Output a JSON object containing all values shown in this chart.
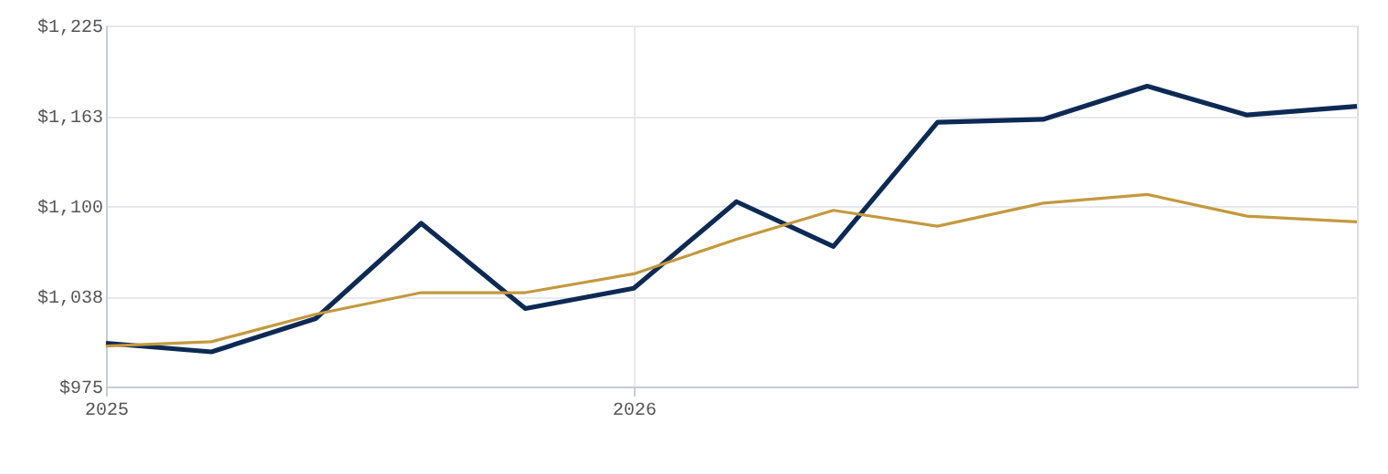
{
  "chart_data": {
    "type": "line",
    "x": [
      "2025-01-01",
      "2025-03-15",
      "2025-05-26",
      "2025-08-07",
      "2025-10-18",
      "2026-01-01",
      "2026-03-13",
      "2026-05-19",
      "2026-07-30",
      "2026-10-11",
      "2026-12-22",
      "2027-03-01",
      "2027-05-16"
    ],
    "series": [
      {
        "color": "#0d2a55",
        "values": [
          1005,
          999,
          1022,
          1088,
          1029,
          1043,
          1103,
          1072,
          1158,
          1160,
          1183,
          1163,
          1169
        ]
      },
      {
        "color": "#c4993e",
        "values": [
          1003,
          1006,
          1025,
          1040,
          1040,
          1053,
          1077,
          1097,
          1086,
          1102,
          1108,
          1093,
          1089
        ]
      }
    ],
    "xlim": [
      "2025-01-01",
      "2027-05-16"
    ],
    "xticks": [
      {
        "value": "2025-01-01",
        "label": "2025"
      },
      {
        "value": "2026-01-01",
        "label": "2026"
      }
    ],
    "ylim": [
      975,
      1225
    ],
    "yticks": [
      {
        "value": 975,
        "label": "$975"
      },
      {
        "value": 1037.5,
        "label": "$1,038"
      },
      {
        "value": 1100,
        "label": "$1,100"
      },
      {
        "value": 1162.5,
        "label": "$1,163"
      },
      {
        "value": 1225,
        "label": "$1,225"
      }
    ],
    "grid": true
  }
}
